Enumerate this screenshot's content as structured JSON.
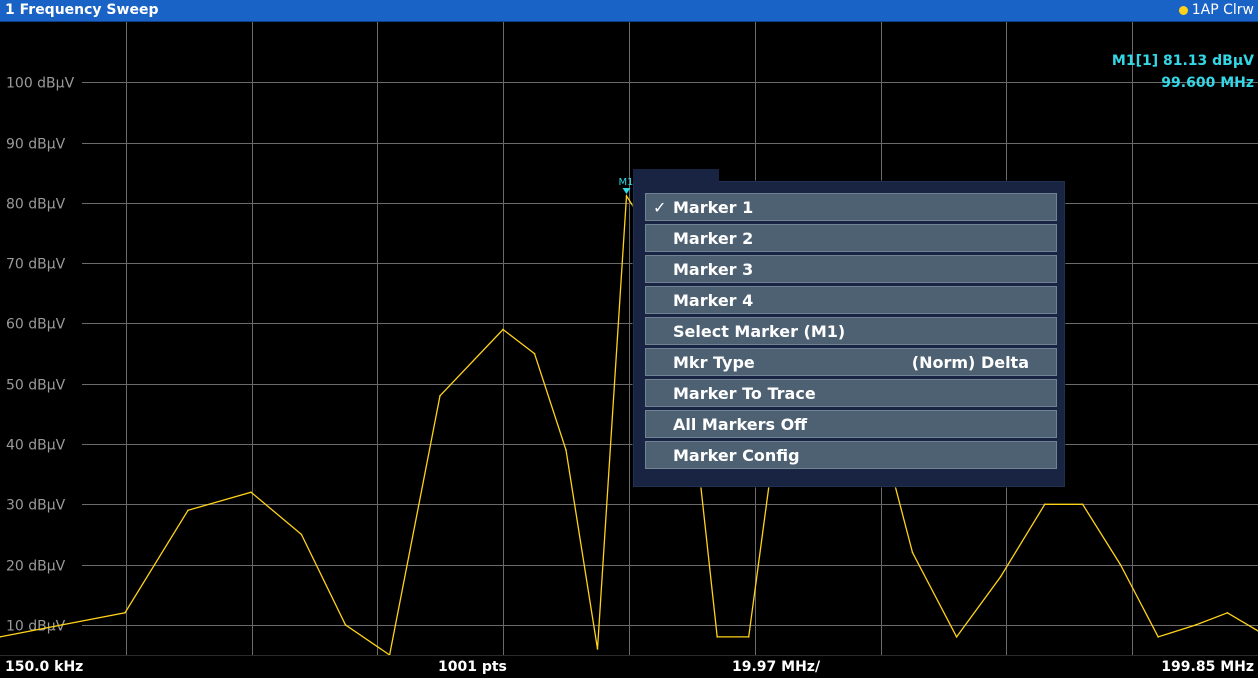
{
  "window": {
    "title": "1 Frequency Sweep",
    "trace_badge": "1AP Clrw",
    "trace_badge_color": "#ffd21a"
  },
  "marker_readout": {
    "level": "M1[1] 81.13 dBµV",
    "frequency": "99.600 MHz",
    "color": "#33d7e6"
  },
  "y_axis": {
    "unit": "dBµV",
    "labels": [
      "100 dBµV",
      "90 dBµV",
      "80 dBµV",
      "70 dBµV",
      "60 dBµV",
      "50 dBµV",
      "40 dBµV",
      "30 dBµV",
      "20 dBµV",
      "10 dBµV"
    ],
    "ticks": [
      100,
      90,
      80,
      70,
      60,
      50,
      40,
      30,
      20,
      10
    ]
  },
  "x_axis": {
    "start": "150.0 kHz",
    "points": "1001 pts",
    "span_per_div": "19.97 MHz/",
    "stop": "199.85 MHz"
  },
  "marker": {
    "label": "M1",
    "x": 99.6,
    "y": 81.13
  },
  "context_menu": {
    "items": [
      {
        "label": "Marker 1",
        "checked": true,
        "value": ""
      },
      {
        "label": "Marker 2",
        "checked": false,
        "value": ""
      },
      {
        "label": "Marker 3",
        "checked": false,
        "value": ""
      },
      {
        "label": "Marker 4",
        "checked": false,
        "value": ""
      },
      {
        "label": "Select Marker (M1)",
        "checked": false,
        "value": ""
      },
      {
        "label": "Mkr Type",
        "checked": false,
        "value": "(Norm) Delta"
      },
      {
        "label": "Marker To Trace",
        "checked": false,
        "value": ""
      },
      {
        "label": "All Markers Off",
        "checked": false,
        "value": ""
      },
      {
        "label": "Marker Config",
        "checked": false,
        "value": ""
      }
    ]
  },
  "chart_data": {
    "type": "line",
    "title": "1 Frequency Sweep",
    "xlabel": "",
    "ylabel": "",
    "xlim": [
      0.15,
      199.85
    ],
    "ylim": [
      5,
      110
    ],
    "grid": true,
    "series": [
      {
        "name": "",
        "color": "#ffd21a",
        "x": [
          0.15,
          10,
          20,
          30,
          40,
          48,
          55,
          62,
          70,
          80,
          85,
          90,
          95,
          99.6,
          104,
          109,
          114,
          119,
          124,
          130,
          138,
          145,
          152,
          159,
          166,
          172,
          178,
          184,
          190,
          195,
          199.85
        ],
        "values": [
          8,
          10,
          12,
          29,
          32,
          25,
          10,
          5,
          48,
          59,
          55,
          39,
          6,
          81.13,
          74,
          56,
          8,
          8,
          47,
          58,
          50,
          22,
          8,
          18,
          30,
          30,
          20,
          8,
          10,
          12,
          9
        ]
      }
    ]
  }
}
